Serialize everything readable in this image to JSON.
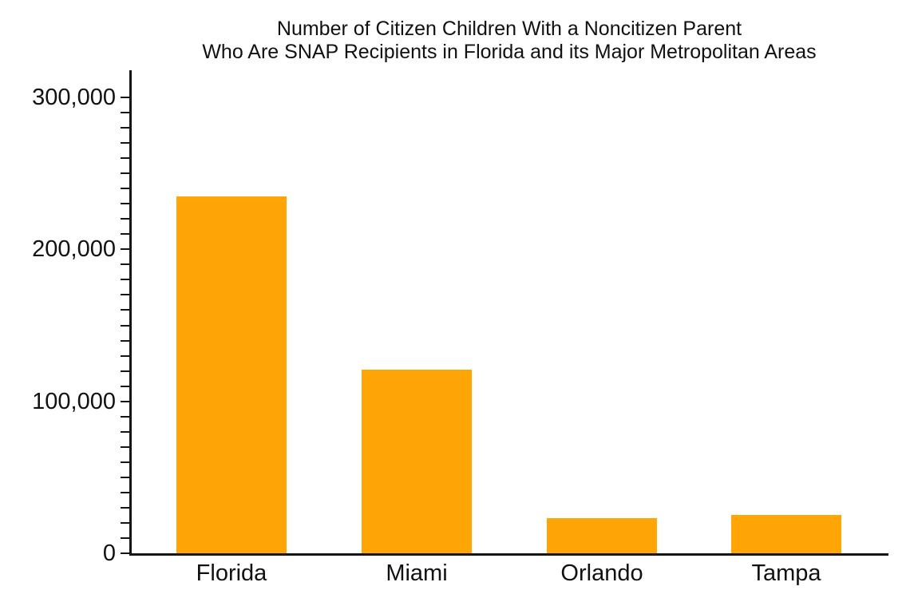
{
  "chart_data": {
    "type": "bar",
    "title": "Number of Citizen Children With a Noncitizen Parent",
    "subtitle": "Who Are SNAP Recipients in Florida and its Major Metropolitan Areas",
    "categories": [
      "Florida",
      "Miami",
      "Orlando",
      "Tampa"
    ],
    "values": [
      235000,
      121000,
      23000,
      25000
    ],
    "xlabel": "",
    "ylabel": "",
    "ylim": [
      0,
      300000
    ],
    "y_major_tick": 100000,
    "y_minor_tick": 10000,
    "y_tick_labels": [
      "0",
      "100,000",
      "200,000",
      "300,000"
    ],
    "bar_color": "#ffa506",
    "axis_color": "#151515",
    "background_color": "#ffffff",
    "grid": false,
    "legend": "none"
  }
}
